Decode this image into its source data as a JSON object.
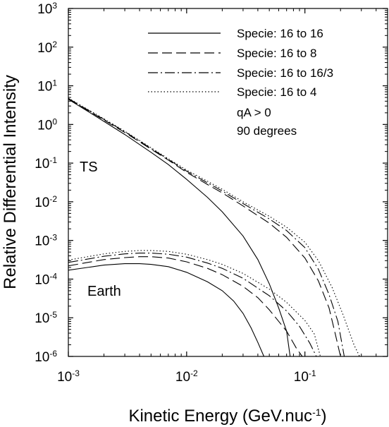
{
  "chart_data": {
    "type": "line",
    "x_scale": "log",
    "y_scale": "log",
    "xlim": [
      0.001,
      0.5
    ],
    "ylim": [
      1e-06,
      1000
    ],
    "x_ticks": [
      {
        "value": 0.001,
        "base": "10",
        "exp": "-3"
      },
      {
        "value": 0.01,
        "base": "10",
        "exp": "-2"
      },
      {
        "value": 0.1,
        "base": "10",
        "exp": "-1"
      }
    ],
    "y_ticks": [
      {
        "value": 1e-06,
        "base": "10",
        "exp": "-6"
      },
      {
        "value": 1e-05,
        "base": "10",
        "exp": "-5"
      },
      {
        "value": 0.0001,
        "base": "10",
        "exp": "-4"
      },
      {
        "value": 0.001,
        "base": "10",
        "exp": "-3"
      },
      {
        "value": 0.01,
        "base": "10",
        "exp": "-2"
      },
      {
        "value": 0.1,
        "base": "10",
        "exp": "-1"
      },
      {
        "value": 1,
        "base": "10",
        "exp": "0"
      },
      {
        "value": 10,
        "base": "10",
        "exp": "1"
      },
      {
        "value": 100,
        "base": "10",
        "exp": "2"
      },
      {
        "value": 1000,
        "base": "10",
        "exp": "3"
      }
    ],
    "xlabel": {
      "text": "Kinetic Energy (GeV.nuc",
      "sup": "-1",
      "tail": ")"
    },
    "ylabel": "Relative Differential Intensity",
    "legend": [
      {
        "label": "Specie: 16 to 16",
        "dash": "solid"
      },
      {
        "label": "Specie: 16 to 8",
        "dash": "dash"
      },
      {
        "label": "Specie: 16 to 16/3",
        "dash": "dashdot"
      },
      {
        "label": "Specie: 16 to 4",
        "dash": "dot"
      }
    ],
    "notes": [
      "qA > 0",
      "90 degrees"
    ],
    "annotations": [
      {
        "text": "TS"
      },
      {
        "text": "Earth"
      }
    ],
    "series": [
      {
        "group": "TS",
        "dash": "solid",
        "points": [
          [
            0.001,
            4.5
          ],
          [
            0.002,
            1.2
          ],
          [
            0.003,
            0.55
          ],
          [
            0.005,
            0.19
          ],
          [
            0.007,
            0.092
          ],
          [
            0.01,
            0.038
          ],
          [
            0.015,
            0.013
          ],
          [
            0.02,
            0.0055
          ],
          [
            0.03,
            0.0013
          ],
          [
            0.04,
            0.00032
          ],
          [
            0.05,
            7.5e-05
          ],
          [
            0.06,
            1.8e-05
          ],
          [
            0.07,
            4.5e-06
          ],
          [
            0.075,
            1e-06
          ]
        ]
      },
      {
        "group": "TS",
        "dash": "dash",
        "points": [
          [
            0.001,
            4.6
          ],
          [
            0.002,
            1.3
          ],
          [
            0.003,
            0.62
          ],
          [
            0.005,
            0.23
          ],
          [
            0.007,
            0.12
          ],
          [
            0.01,
            0.058
          ],
          [
            0.015,
            0.028
          ],
          [
            0.02,
            0.017
          ],
          [
            0.03,
            0.0078
          ],
          [
            0.05,
            0.0028
          ],
          [
            0.07,
            0.0012
          ],
          [
            0.1,
            0.00035
          ],
          [
            0.13,
            9e-05
          ],
          [
            0.16,
            1.8e-05
          ],
          [
            0.18,
            4e-06
          ],
          [
            0.2,
            1e-06
          ]
        ]
      },
      {
        "group": "TS",
        "dash": "dashdot",
        "points": [
          [
            0.001,
            4.7
          ],
          [
            0.002,
            1.35
          ],
          [
            0.003,
            0.65
          ],
          [
            0.005,
            0.24
          ],
          [
            0.007,
            0.125
          ],
          [
            0.01,
            0.062
          ],
          [
            0.015,
            0.031
          ],
          [
            0.02,
            0.019
          ],
          [
            0.03,
            0.009
          ],
          [
            0.05,
            0.0036
          ],
          [
            0.07,
            0.0018
          ],
          [
            0.1,
            0.00065
          ],
          [
            0.13,
            0.00018
          ],
          [
            0.16,
            4e-05
          ],
          [
            0.19,
            8e-06
          ],
          [
            0.215,
            1e-06
          ]
        ]
      },
      {
        "group": "TS",
        "dash": "dot",
        "points": [
          [
            0.001,
            4.8
          ],
          [
            0.002,
            1.4
          ],
          [
            0.003,
            0.67
          ],
          [
            0.005,
            0.25
          ],
          [
            0.007,
            0.13
          ],
          [
            0.01,
            0.066
          ],
          [
            0.015,
            0.034
          ],
          [
            0.02,
            0.021
          ],
          [
            0.03,
            0.01
          ],
          [
            0.05,
            0.0042
          ],
          [
            0.07,
            0.0022
          ],
          [
            0.1,
            0.0009
          ],
          [
            0.13,
            0.0003
          ],
          [
            0.17,
            6e-05
          ],
          [
            0.21,
            1.2e-05
          ],
          [
            0.26,
            2e-06
          ],
          [
            0.29,
            1e-06
          ]
        ]
      },
      {
        "group": "Earth",
        "dash": "solid",
        "points": [
          [
            0.001,
            0.00017
          ],
          [
            0.002,
            0.00023
          ],
          [
            0.003,
            0.00025
          ],
          [
            0.004,
            0.00025
          ],
          [
            0.005,
            0.00024
          ],
          [
            0.007,
            0.00021
          ],
          [
            0.01,
            0.00015
          ],
          [
            0.015,
            8.5e-05
          ],
          [
            0.02,
            5e-05
          ],
          [
            0.025,
            2.7e-05
          ],
          [
            0.03,
            1.3e-05
          ],
          [
            0.035,
            5.5e-06
          ],
          [
            0.04,
            2.3e-06
          ],
          [
            0.045,
            1e-06
          ]
        ]
      },
      {
        "group": "Earth",
        "dash": "dash",
        "points": [
          [
            0.001,
            0.00022
          ],
          [
            0.002,
            0.00032
          ],
          [
            0.003,
            0.00036
          ],
          [
            0.004,
            0.00038
          ],
          [
            0.005,
            0.00038
          ],
          [
            0.007,
            0.00035
          ],
          [
            0.01,
            0.00028
          ],
          [
            0.015,
            0.00019
          ],
          [
            0.02,
            0.00013
          ],
          [
            0.03,
            6.5e-05
          ],
          [
            0.04,
            3.3e-05
          ],
          [
            0.05,
            1.6e-05
          ],
          [
            0.07,
            4.5e-06
          ],
          [
            0.085,
            1.6e-06
          ],
          [
            0.095,
            1e-06
          ]
        ]
      },
      {
        "group": "Earth",
        "dash": "dashdot",
        "points": [
          [
            0.001,
            0.00027
          ],
          [
            0.002,
            0.00039
          ],
          [
            0.003,
            0.00045
          ],
          [
            0.004,
            0.00047
          ],
          [
            0.005,
            0.00047
          ],
          [
            0.007,
            0.00044
          ],
          [
            0.01,
            0.00037
          ],
          [
            0.015,
            0.00026
          ],
          [
            0.02,
            0.00019
          ],
          [
            0.03,
            0.000105
          ],
          [
            0.05,
            3.7e-05
          ],
          [
            0.07,
            1.5e-05
          ],
          [
            0.09,
            6e-06
          ],
          [
            0.11,
            2.2e-06
          ],
          [
            0.125,
            1e-06
          ]
        ]
      },
      {
        "group": "Earth",
        "dash": "dot",
        "points": [
          [
            0.001,
            0.00031
          ],
          [
            0.002,
            0.00045
          ],
          [
            0.003,
            0.00052
          ],
          [
            0.004,
            0.00055
          ],
          [
            0.005,
            0.00055
          ],
          [
            0.007,
            0.00052
          ],
          [
            0.01,
            0.00044
          ],
          [
            0.015,
            0.00032
          ],
          [
            0.02,
            0.00024
          ],
          [
            0.03,
            0.00014
          ],
          [
            0.05,
            5.5e-05
          ],
          [
            0.07,
            2.5e-05
          ],
          [
            0.1,
            8.5e-06
          ],
          [
            0.12,
            3.8e-06
          ],
          [
            0.135,
            1e-06
          ]
        ]
      }
    ]
  }
}
